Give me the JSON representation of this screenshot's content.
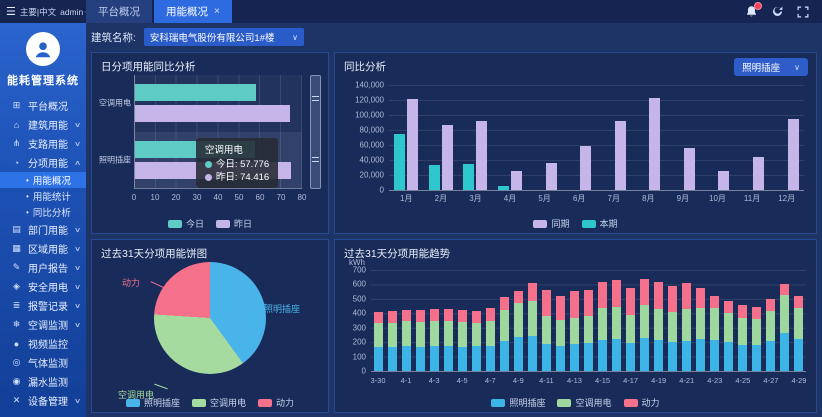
{
  "topbar": {
    "menu_label": "主要|中文",
    "user": "admin",
    "tabs": [
      {
        "label": "平台概况",
        "active": false
      },
      {
        "label": "用能概况",
        "active": true,
        "close_glyph": "×"
      }
    ]
  },
  "sidebar": {
    "app_title": "能耗管理系统",
    "items": [
      {
        "id": "platform-overview",
        "icon": "monitor",
        "label": "平台概况"
      },
      {
        "id": "building-energy",
        "icon": "building",
        "label": "建筑用能",
        "chevron": true
      },
      {
        "id": "branch-energy",
        "icon": "branch",
        "label": "支路用能",
        "chevron": true
      },
      {
        "id": "subitem-energy",
        "icon": "pie",
        "label": "分项用能",
        "chevron": true,
        "expanded": true,
        "children": [
          {
            "id": "energy-overview",
            "label": "用能概况",
            "active": true
          },
          {
            "id": "energy-stats",
            "label": "用能统计",
            "active": false
          },
          {
            "id": "yoy-analysis",
            "label": "同比分析",
            "active": false
          }
        ]
      },
      {
        "id": "department-energy",
        "icon": "folder",
        "label": "部门用能",
        "chevron": true
      },
      {
        "id": "region-energy",
        "icon": "region",
        "label": "区域用能",
        "chevron": true
      },
      {
        "id": "user-report",
        "icon": "report",
        "label": "用户报告",
        "chevron": true
      },
      {
        "id": "safe-power",
        "icon": "shield",
        "label": "安全用电",
        "chevron": true
      },
      {
        "id": "alarm-records",
        "icon": "doc",
        "label": "报警记录",
        "chevron": true
      },
      {
        "id": "ac-monitoring",
        "icon": "ac",
        "label": "空调监测",
        "chevron": true
      },
      {
        "id": "video-monitoring",
        "icon": "camera",
        "label": "视频监控",
        "chevron": false
      },
      {
        "id": "gas-monitoring",
        "icon": "pin",
        "label": "气体监测",
        "chevron": false
      },
      {
        "id": "leak-monitoring",
        "icon": "drop",
        "label": "漏水监测",
        "chevron": false
      },
      {
        "id": "device-management",
        "icon": "tools",
        "label": "设备管理",
        "chevron": true
      }
    ]
  },
  "filter": {
    "label": "建筑名称:",
    "selected": "安科瑞电气股份有限公司1#楼"
  },
  "chart_data": [
    {
      "id": "daily-yoy",
      "type": "bar",
      "orientation": "horizontal",
      "title": "日分项用能同比分析",
      "categories": [
        "空调用电",
        "照明插座"
      ],
      "series": [
        {
          "name": "今日",
          "color": "#5ECBC4",
          "values": [
            57.776,
            57.5
          ]
        },
        {
          "name": "昨日",
          "color": "#C6B5E8",
          "values": [
            74.416,
            74.5
          ]
        }
      ],
      "xlim": [
        0,
        80
      ],
      "xticks": [
        0,
        10,
        20,
        30,
        40,
        50,
        60,
        70,
        80
      ],
      "tooltip": {
        "title": "空调用电",
        "rows": [
          {
            "name": "今日",
            "value": "57.776",
            "color": "#5ECBC4"
          },
          {
            "name": "昨日",
            "value": "74.416",
            "color": "#C6B5E8"
          }
        ]
      }
    },
    {
      "id": "monthly-yoy",
      "type": "bar",
      "title": "同比分析",
      "dropdown": "照明插座",
      "categories": [
        "1月",
        "2月",
        "3月",
        "4月",
        "5月",
        "6月",
        "7月",
        "8月",
        "9月",
        "10月",
        "11月",
        "12月"
      ],
      "series": [
        {
          "name": "同期",
          "color": "#C6B5E8",
          "values": [
            122000,
            87000,
            92000,
            26000,
            36000,
            59000,
            92000,
            123000,
            56000,
            26000,
            44000,
            95000
          ]
        },
        {
          "name": "本期",
          "color": "#2EC7CE",
          "values": [
            75000,
            33000,
            35000,
            5000,
            0,
            0,
            0,
            0,
            0,
            0,
            0,
            0
          ]
        }
      ],
      "ylim": [
        0,
        140000
      ],
      "ytick_labels": [
        "140,000",
        "120,000",
        "100,000",
        "80,000",
        "60,000",
        "40,000",
        "20,000",
        "0"
      ]
    },
    {
      "id": "pie-31d",
      "type": "pie",
      "title": "过去31天分项用能饼图",
      "slices": [
        {
          "name": "照明插座",
          "color": "#49B4E9",
          "pct": 40
        },
        {
          "name": "空调用电",
          "color": "#A5DB9F",
          "pct": 36
        },
        {
          "name": "动力",
          "color": "#F4708B",
          "pct": 24
        }
      ]
    },
    {
      "id": "trend-31d",
      "type": "stacked-bar",
      "title": "过去31天分项用能趋势",
      "unit": "kWh",
      "ylim": [
        0,
        700
      ],
      "ytick_labels": [
        "700",
        "600",
        "500",
        "400",
        "300",
        "200",
        "100",
        "0"
      ],
      "dates": [
        "3-30",
        "3-31",
        "4-1",
        "4-2",
        "4-3",
        "4-4",
        "4-5",
        "4-6",
        "4-7",
        "4-8",
        "4-9",
        "4-10",
        "4-11",
        "4-12",
        "4-13",
        "4-14",
        "4-15",
        "4-16",
        "4-17",
        "4-18",
        "4-19",
        "4-20",
        "4-21",
        "4-22",
        "4-23",
        "4-24",
        "4-25",
        "4-26",
        "4-27",
        "4-28",
        "4-29"
      ],
      "x_labels_shown": [
        "3-30",
        "4-1",
        "4-3",
        "4-5",
        "4-7",
        "4-9",
        "4-11",
        "4-13",
        "4-15",
        "4-17",
        "4-19",
        "4-21",
        "4-23",
        "4-25",
        "4-27",
        "4-29"
      ],
      "series": [
        {
          "name": "照明插座",
          "color": "#3CB4E6",
          "values": [
            165,
            165,
            170,
            168,
            170,
            172,
            168,
            170,
            175,
            210,
            235,
            245,
            190,
            175,
            190,
            193,
            215,
            222,
            195,
            230,
            215,
            200,
            210,
            220,
            218,
            203,
            182,
            180,
            207,
            262,
            220
          ]
        },
        {
          "name": "空调用电",
          "color": "#9FD89F",
          "values": [
            165,
            165,
            175,
            172,
            175,
            178,
            170,
            166,
            175,
            210,
            235,
            240,
            190,
            177,
            178,
            189,
            220,
            223,
            195,
            228,
            217,
            210,
            220,
            220,
            217,
            197,
            186,
            180,
            208,
            263,
            217
          ]
        },
        {
          "name": "动力",
          "color": "#F4708B",
          "values": [
            80,
            85,
            80,
            82,
            83,
            82,
            82,
            82,
            87,
            90,
            82,
            125,
            185,
            166,
            187,
            183,
            183,
            187,
            185,
            182,
            186,
            180,
            180,
            138,
            83,
            87,
            90,
            85,
            82,
            80,
            81
          ]
        }
      ]
    }
  ]
}
